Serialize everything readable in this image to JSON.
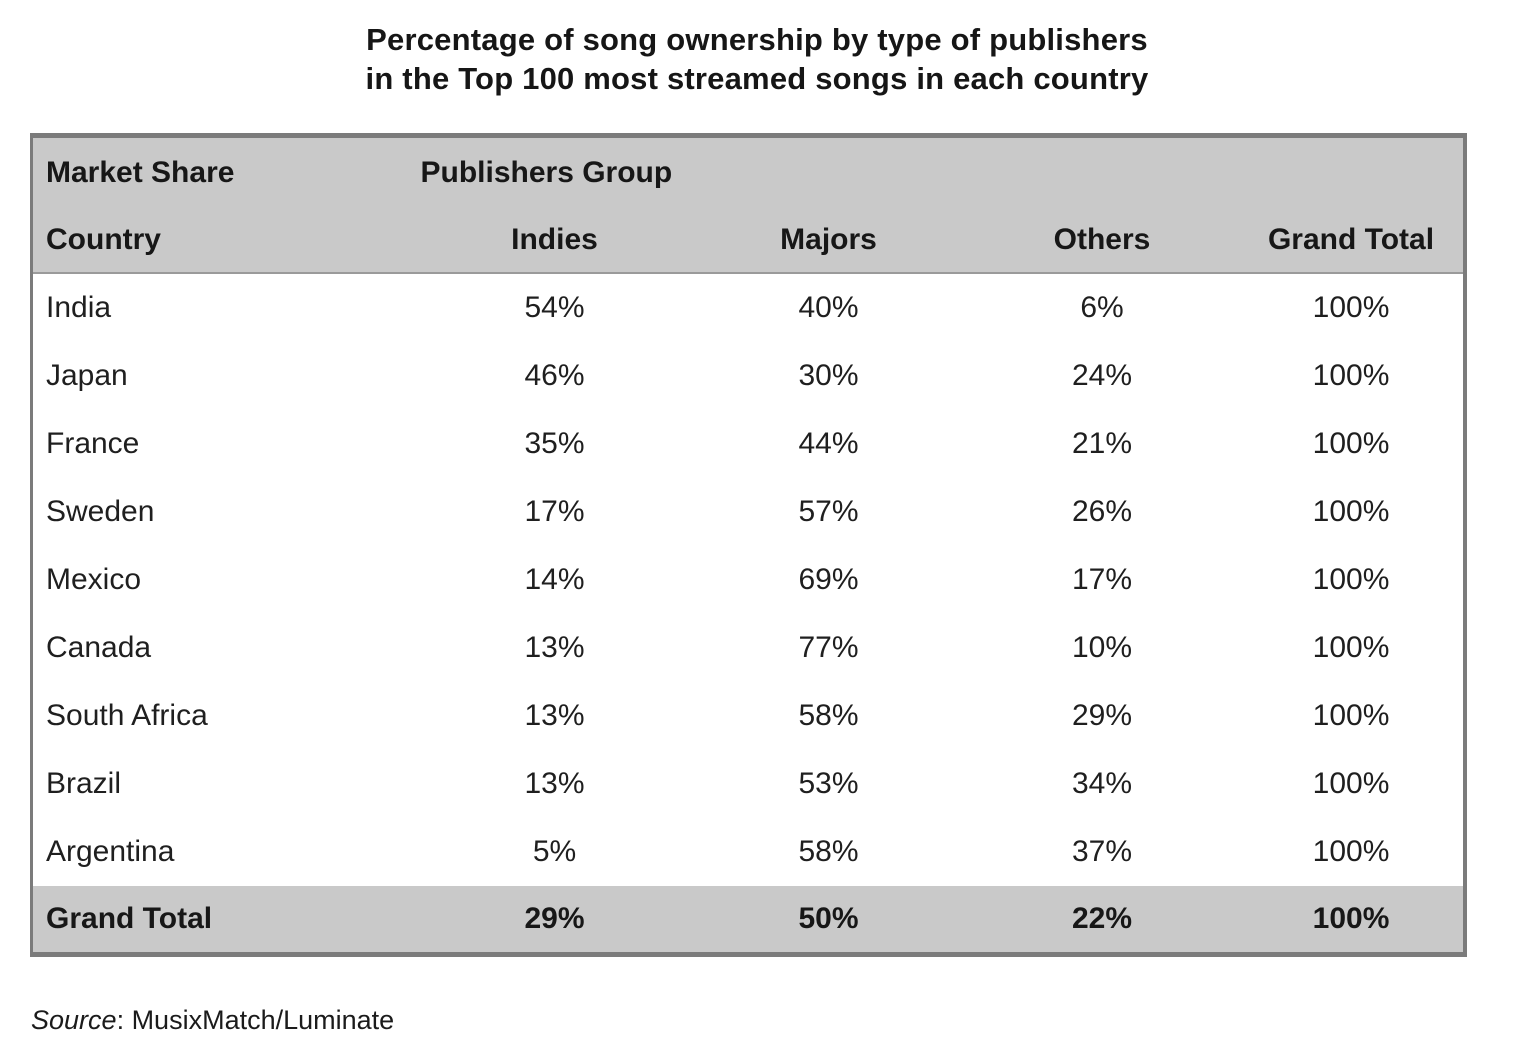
{
  "title": {
    "line1": "Percentage of song ownership by type of publishers",
    "line2": "in the Top 100 most streamed songs in each country"
  },
  "table": {
    "group_header": {
      "market_share": "Market Share",
      "publishers_group": "Publishers Group"
    },
    "columns": {
      "country": "Country",
      "indies": "Indies",
      "majors": "Majors",
      "others": "Others",
      "grand_total": "Grand Total"
    },
    "rows": [
      {
        "country": "India",
        "indies": "54%",
        "majors": "40%",
        "others": "6%",
        "grand_total": "100%"
      },
      {
        "country": "Japan",
        "indies": "46%",
        "majors": "30%",
        "others": "24%",
        "grand_total": "100%"
      },
      {
        "country": "France",
        "indies": "35%",
        "majors": "44%",
        "others": "21%",
        "grand_total": "100%"
      },
      {
        "country": "Sweden",
        "indies": "17%",
        "majors": "57%",
        "others": "26%",
        "grand_total": "100%"
      },
      {
        "country": "Mexico",
        "indies": "14%",
        "majors": "69%",
        "others": "17%",
        "grand_total": "100%"
      },
      {
        "country": "Canada",
        "indies": "13%",
        "majors": "77%",
        "others": "10%",
        "grand_total": "100%"
      },
      {
        "country": "South Africa",
        "indies": "13%",
        "majors": "58%",
        "others": "29%",
        "grand_total": "100%"
      },
      {
        "country": "Brazil",
        "indies": "13%",
        "majors": "53%",
        "others": "34%",
        "grand_total": "100%"
      },
      {
        "country": "Argentina",
        "indies": "5%",
        "majors": "58%",
        "others": "37%",
        "grand_total": "100%"
      }
    ],
    "total_row": {
      "country": "Grand Total",
      "indies": "29%",
      "majors": "50%",
      "others": "22%",
      "grand_total": "100%"
    }
  },
  "source": {
    "label": "Source",
    "value": ": MusixMatch/Luminate"
  },
  "colors": {
    "header_bg": "#c9c9c9",
    "total_bg": "#c9c9c9",
    "border": "#7b7b7b",
    "text": "#1e1e1e"
  },
  "chart_data": {
    "type": "table",
    "title": "Percentage of song ownership by type of publishers in the Top 100 most streamed songs in each country",
    "columns": [
      "Country",
      "Indies",
      "Majors",
      "Others",
      "Grand Total"
    ],
    "rows": [
      [
        "India",
        54,
        40,
        6,
        100
      ],
      [
        "Japan",
        46,
        30,
        24,
        100
      ],
      [
        "France",
        35,
        44,
        21,
        100
      ],
      [
        "Sweden",
        17,
        57,
        26,
        100
      ],
      [
        "Mexico",
        14,
        69,
        17,
        100
      ],
      [
        "Canada",
        13,
        77,
        10,
        100
      ],
      [
        "South Africa",
        13,
        58,
        29,
        100
      ],
      [
        "Brazil",
        13,
        53,
        34,
        100
      ],
      [
        "Argentina",
        5,
        58,
        37,
        100
      ]
    ],
    "grand_total_row": [
      "Grand Total",
      29,
      50,
      22,
      100
    ],
    "units": "percent",
    "source": "MusixMatch/Luminate"
  }
}
